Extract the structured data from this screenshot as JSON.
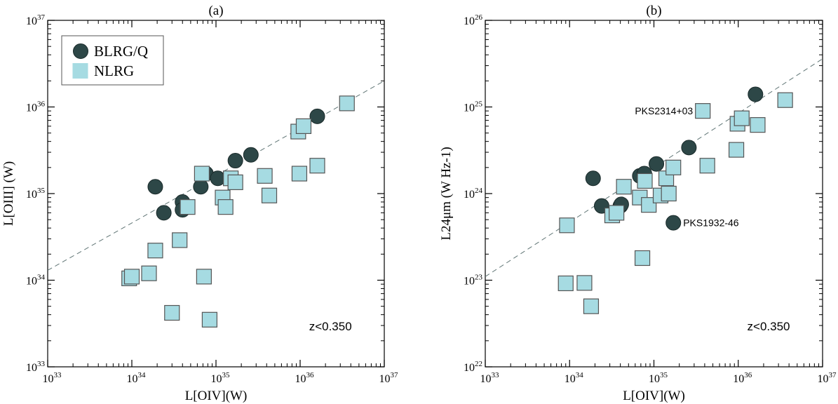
{
  "chart_data": [
    {
      "type": "scatter",
      "title": "(a)",
      "xlabel": "L[OIV](W)",
      "ylabel": "L[OIII] (W)",
      "xscale": "log",
      "yscale": "log",
      "xlim": [
        1e+33,
        1e+37
      ],
      "ylim": [
        1e+33,
        1e+37
      ],
      "xticks": [
        {
          "value": 1e+33,
          "base": "10",
          "exp": "33"
        },
        {
          "value": 1e+34,
          "base": "10",
          "exp": "34"
        },
        {
          "value": 1e+35,
          "base": "10",
          "exp": "35"
        },
        {
          "value": 1e+36,
          "base": "10",
          "exp": "36"
        },
        {
          "value": 1e+37,
          "base": "10",
          "exp": "37"
        }
      ],
      "yticks": [
        {
          "value": 1e+33,
          "base": "10",
          "exp": "33"
        },
        {
          "value": 1e+34,
          "base": "10",
          "exp": "34"
        },
        {
          "value": 1e+35,
          "base": "10",
          "exp": "35"
        },
        {
          "value": 1e+36,
          "base": "10",
          "exp": "36"
        },
        {
          "value": 1e+37,
          "base": "10",
          "exp": "37"
        }
      ],
      "legend": {
        "position": "top-left",
        "entries": [
          "BLRG/Q",
          "NLRG"
        ]
      },
      "annotation": "z<0.350",
      "fit_line": [
        [
          1e+33,
          1.3e+34
        ],
        [
          1e+37,
          2e+36
        ]
      ],
      "series": [
        {
          "name": "BLRG/Q",
          "marker": "circle",
          "color": "#2d4747",
          "points": [
            [
              1.9e+34,
              1.2e+35
            ],
            [
              2.4e+34,
              6e+34
            ],
            [
              4e+34,
              8e+34
            ],
            [
              4e+34,
              6.5e+34
            ],
            [
              6.6e+34,
              1.2e+35
            ],
            [
              7.6e+34,
              1.7e+35
            ],
            [
              1.05e+35,
              1.5e+35
            ],
            [
              1.7e+35,
              2.4e+35
            ],
            [
              2.6e+35,
              2.8e+35
            ],
            [
              1.6e+36,
              7.8e+35
            ]
          ]
        },
        {
          "name": "NLRG",
          "marker": "square",
          "color": "#a6dbe2",
          "points": [
            [
              9.3e+33,
              1.05e+34
            ],
            [
              1e+34,
              1.1e+34
            ],
            [
              1.6e+34,
              1.2e+34
            ],
            [
              1.9e+34,
              2.2e+34
            ],
            [
              3e+34,
              4.2e+33
            ],
            [
              3.7e+34,
              2.9e+34
            ],
            [
              4.6e+34,
              7e+34
            ],
            [
              6.8e+34,
              1.7e+35
            ],
            [
              7.2e+34,
              1.1e+34
            ],
            [
              8.4e+34,
              3.5e+33
            ],
            [
              1.2e+35,
              9e+34
            ],
            [
              1.3e+35,
              7e+34
            ],
            [
              1.5e+35,
              1.5e+35
            ],
            [
              1.7e+35,
              1.35e+35
            ],
            [
              3.8e+35,
              1.6e+35
            ],
            [
              4.3e+35,
              9.5e+34
            ],
            [
              9.5e+35,
              5.2e+35
            ],
            [
              1.1e+36,
              6e+35
            ],
            [
              9.8e+35,
              1.7e+35
            ],
            [
              1.6e+36,
              2.1e+35
            ],
            [
              3.6e+36,
              1.1e+36
            ]
          ]
        }
      ]
    },
    {
      "type": "scatter",
      "title": "(b)",
      "xlabel": "L[OIV](W)",
      "ylabel": "L24μm (W Hz-1)",
      "xscale": "log",
      "yscale": "log",
      "xlim": [
        1e+33,
        1e+37
      ],
      "ylim": [
        1e+22,
        1e+26
      ],
      "xticks": [
        {
          "value": 1e+33,
          "base": "10",
          "exp": "33"
        },
        {
          "value": 1e+34,
          "base": "10",
          "exp": "34"
        },
        {
          "value": 1e+35,
          "base": "10",
          "exp": "35"
        },
        {
          "value": 1e+36,
          "base": "10",
          "exp": "36"
        },
        {
          "value": 1e+37,
          "base": "10",
          "exp": "37"
        }
      ],
      "yticks": [
        {
          "value": 1e+22,
          "base": "10",
          "exp": "22"
        },
        {
          "value": 1e+23,
          "base": "10",
          "exp": "23"
        },
        {
          "value": 1e+24,
          "base": "10",
          "exp": "24"
        },
        {
          "value": 1e+25,
          "base": "10",
          "exp": "25"
        },
        {
          "value": 1e+26,
          "base": "10",
          "exp": "26"
        }
      ],
      "annotation": "z<0.350",
      "labels": [
        {
          "text": "PKS2314+03",
          "x": 3.8e+35,
          "y": 9e+24,
          "side": "left"
        },
        {
          "text": "PKS1932-46",
          "x": 1.7e+35,
          "y": 4.6e+23,
          "side": "right"
        }
      ],
      "fit_line": [
        [
          1e+33,
          1.1e+23
        ],
        [
          1e+37,
          3.6e+25
        ]
      ],
      "series": [
        {
          "name": "BLRG/Q",
          "marker": "circle",
          "color": "#2d4747",
          "points": [
            [
              1.9e+34,
              1.5e+24
            ],
            [
              2.4e+34,
              7.2e+23
            ],
            [
              4e+34,
              7.2e+23
            ],
            [
              4.1e+34,
              7.5e+23
            ],
            [
              6.8e+34,
              1.6e+24
            ],
            [
              7.7e+34,
              1.7e+24
            ],
            [
              1.07e+35,
              2.2e+24
            ],
            [
              1.7e+35,
              4.6e+23
            ],
            [
              2.6e+35,
              3.4e+24
            ],
            [
              1.6e+36,
              1.4e+25
            ]
          ]
        },
        {
          "name": "NLRG",
          "marker": "square",
          "color": "#a6dbe2",
          "points": [
            [
              9.3e+33,
              4.3e+23
            ],
            [
              9e+33,
              9.2e+22
            ],
            [
              1.5e+34,
              9.3e+22
            ],
            [
              1.8e+34,
              5e+22
            ],
            [
              3.2e+34,
              5.6e+23
            ],
            [
              3.6e+34,
              6e+23
            ],
            [
              4.4e+34,
              1.2e+24
            ],
            [
              6.8e+34,
              9e+23
            ],
            [
              7.3e+34,
              1.8e+23
            ],
            [
              7.8e+34,
              1.4e+24
            ],
            [
              8.7e+34,
              7.4e+23
            ],
            [
              1.2e+35,
              9.5e+23
            ],
            [
              1.4e+35,
              1.5e+24
            ],
            [
              1.5e+35,
              1e+24
            ],
            [
              1.7e+35,
              2e+24
            ],
            [
              3.8e+35,
              9e+24
            ],
            [
              4.3e+35,
              2.1e+24
            ],
            [
              9.5e+35,
              3.2e+24
            ],
            [
              9.8e+35,
              6.4e+24
            ],
            [
              1.1e+36,
              7.4e+24
            ],
            [
              1.7e+36,
              6.2e+24
            ],
            [
              3.6e+36,
              1.2e+25
            ]
          ]
        }
      ]
    }
  ]
}
